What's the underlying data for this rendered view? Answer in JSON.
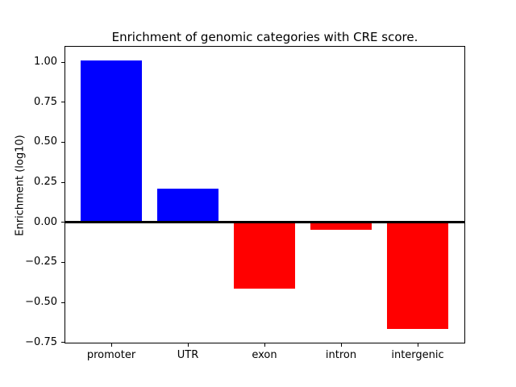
{
  "figure": {
    "background": "#ffffff"
  },
  "chart_data": {
    "type": "bar",
    "title": "Enrichment of genomic categories with CRE score.",
    "xlabel": "",
    "ylabel": "Enrichment (log10)",
    "categories": [
      "promoter",
      "UTR",
      "exon",
      "intron",
      "intergenic"
    ],
    "values": [
      1.01,
      0.21,
      -0.42,
      -0.05,
      -0.67
    ],
    "bar_colors": [
      "#0000ff",
      "#0000ff",
      "#ff0000",
      "#ff0000",
      "#ff0000"
    ],
    "positive_color": "#0000ff",
    "negative_color": "#ff0000",
    "yticks": [
      1.0,
      0.75,
      0.5,
      0.25,
      0.0,
      -0.25,
      -0.5,
      -0.75
    ],
    "ytick_labels": [
      "1.00",
      "0.75",
      "0.50",
      "0.25",
      "0.00",
      "−0.25",
      "−0.50",
      "−0.75"
    ],
    "ylim": [
      -0.754,
      1.094
    ],
    "grid": false,
    "legend": null,
    "zero_line": true,
    "axis_color": "#000000"
  }
}
